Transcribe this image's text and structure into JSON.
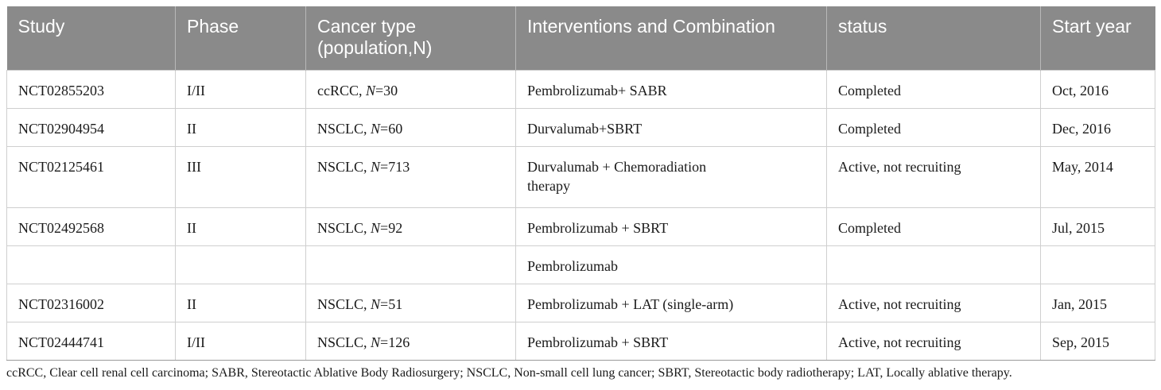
{
  "table": {
    "headers": [
      "Study",
      "Phase",
      "Cancer type (population,N)",
      "Interventions and Combination",
      "status",
      "Start year"
    ],
    "rows": [
      {
        "study": "NCT02855203",
        "phase": "I/II",
        "cancer": "ccRCC, ",
        "n_label": "N",
        "n_value": "=30",
        "intervention": "Pembrolizumab+ SABR",
        "status": "Completed",
        "start": "Oct, 2016"
      },
      {
        "study": "NCT02904954",
        "phase": "II",
        "cancer": "NSCLC, ",
        "n_label": "N",
        "n_value": "=60",
        "intervention": "Durvalumab+SBRT",
        "status": "Completed",
        "start": "Dec, 2016"
      },
      {
        "study": "NCT02125461",
        "phase": "III",
        "cancer": "NSCLC, ",
        "n_label": "N",
        "n_value": "=713",
        "intervention": "Durvalumab + Chemoradiation therapy",
        "status": "Active, not recruiting",
        "start": "May, 2014"
      },
      {
        "study": "NCT02492568",
        "phase": "II",
        "cancer": "NSCLC, ",
        "n_label": "N",
        "n_value": "=92",
        "intervention": "Pembrolizumab + SBRT",
        "status": "Completed",
        "start": "Jul, 2015"
      },
      {
        "study": "",
        "phase": "",
        "cancer": "",
        "n_label": "",
        "n_value": "",
        "intervention": "Pembrolizumab",
        "status": "",
        "start": ""
      },
      {
        "study": "NCT02316002",
        "phase": "II",
        "cancer": "NSCLC, ",
        "n_label": "N",
        "n_value": "=51",
        "intervention": "Pembrolizumab + LAT (single-arm)",
        "status": "Active, not recruiting",
        "start": "Jan, 2015"
      },
      {
        "study": "NCT02444741",
        "phase": "I/II",
        "cancer": "NSCLC, ",
        "n_label": "N",
        "n_value": "=126",
        "intervention": "Pembrolizumab + SBRT",
        "status": "Active, not recruiting",
        "start": "Sep, 2015"
      }
    ]
  },
  "footnote": "ccRCC, Clear cell renal cell carcinoma; SABR, Stereotactic Ablative Body Radiosurgery; NSCLC, Non-small cell lung cancer; SBRT, Stereotactic body radiotherapy; LAT, Locally ablative therapy."
}
